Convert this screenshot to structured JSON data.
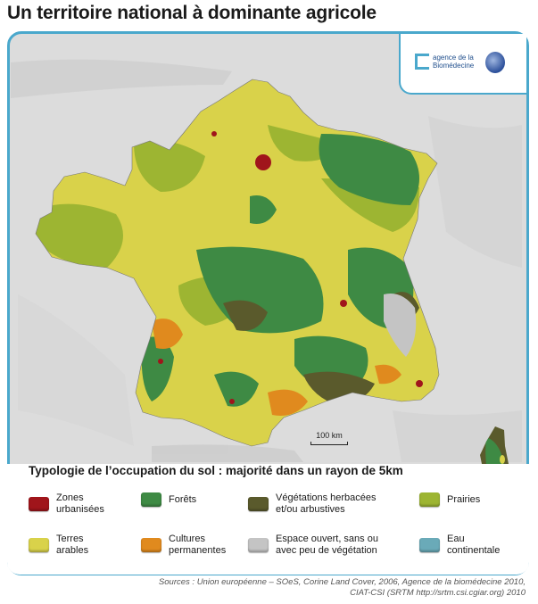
{
  "title": "Un territoire national à dominante agricole",
  "logo": {
    "line1": "agence de la",
    "line2": "Biomédecine"
  },
  "scale_label": "100 km",
  "legend": {
    "title": "Typologie de l’occupation du sol : majorité dans un rayon de 5km",
    "items": [
      {
        "label": "Zones\nurbanisées",
        "color": "#a0151b"
      },
      {
        "label": "Forêts",
        "color": "#3e8a44"
      },
      {
        "label": "Végétations herbacées\net/ou arbustives",
        "color": "#5a5a2c"
      },
      {
        "label": "Prairies",
        "color": "#9db532"
      },
      {
        "label": "Terres\narables",
        "color": "#d9d24a"
      },
      {
        "label": "Cultures\npermanentes",
        "color": "#e08a1e"
      },
      {
        "label": "Espace ouvert, sans ou\navec peu de végétation",
        "color": "#c4c4c4"
      },
      {
        "label": "Eau\ncontinentale",
        "color": "#6aaab8"
      }
    ]
  },
  "sources": {
    "line1": "Sources : Union européenne – SOeS, Corine Land Cover, 2006, Agence de la biomédecine 2010,",
    "line2": "CIAT-CSI (SRTM http://srtm.csi.cgiar.org) 2010"
  },
  "colors": {
    "frame": "#4aa8cc",
    "background_relief": "#dcdcdc",
    "sea": "#d2d4d6"
  }
}
